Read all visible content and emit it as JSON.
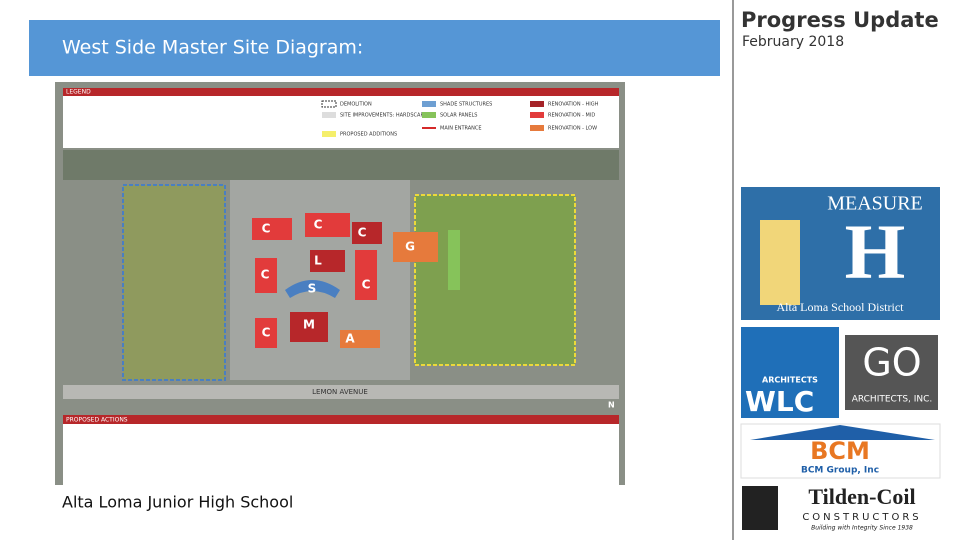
{
  "header": {
    "title": "West Side Master Site Diagram:"
  },
  "side": {
    "title": "Progress Update",
    "date": "February 2018"
  },
  "diagram": {
    "legend_title": "LEGEND",
    "legend_items": [
      "DEMOLITION",
      "SITE IMPROVEMENTS: HARDSCAPE",
      "PROPOSED ADDITIONS",
      "SHADE STRUCTURES",
      "SOLAR PANELS",
      "MAIN ENTRANCE",
      "RENOVATION - HIGH",
      "RENOVATION - MID",
      "RENOVATION - LOW"
    ],
    "buildings": [
      "C",
      "C",
      "C",
      "G",
      "L",
      "C",
      "C",
      "S",
      "M",
      "C",
      "A"
    ],
    "street": "LEMON AVENUE",
    "north": "N",
    "actions_title": "PROPOSED ACTIONS"
  },
  "caption": "Alta Loma Junior High School",
  "logos": {
    "measure": "MEASURE",
    "letter": "H",
    "district": "Alta Loma School District",
    "wlc_small": "ARCHITECTS",
    "wlc": "WLC",
    "go": "GO",
    "go_sub": "ARCHITECTS, INC.",
    "bcm": "BCM",
    "bcm_sub": "BCM Group, Inc",
    "tilden": "Tilden-Coil",
    "constructors": "CONSTRUCTORS",
    "tagline": "Building with Integrity Since 1938"
  }
}
